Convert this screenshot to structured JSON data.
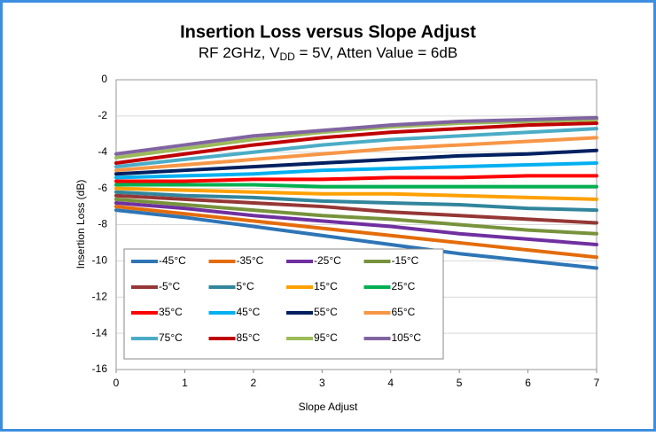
{
  "chart_data": {
    "type": "line",
    "title": "Insertion Loss versus Slope Adjust",
    "subtitle": [
      "RF 2GHz, V",
      "DD",
      " = 5V, Atten Value = 6dB"
    ],
    "x_label": "Slope Adjust",
    "y_label": "Insertion Loss (dB)",
    "x": [
      0,
      1,
      2,
      3,
      4,
      5,
      6,
      7
    ],
    "xlim": [
      0,
      7
    ],
    "xticks": [
      0,
      1,
      2,
      3,
      4,
      5,
      6,
      7
    ],
    "ylim": [
      -16,
      0
    ],
    "yticks": [
      -16,
      -14,
      -12,
      -10,
      -8,
      -6,
      -4,
      -2,
      0
    ],
    "grid": true,
    "legend": "lower-left",
    "series": [
      {
        "name": "-45°C",
        "color": "#2e75b6",
        "values": [
          -7.2,
          -7.6,
          -8.1,
          -8.6,
          -9.1,
          -9.6,
          -10.0,
          -10.4
        ]
      },
      {
        "name": "-35°C",
        "color": "#e46c0a",
        "values": [
          -7.0,
          -7.4,
          -7.8,
          -8.2,
          -8.6,
          -9.0,
          -9.4,
          -9.8
        ]
      },
      {
        "name": "-25°C",
        "color": "#7030a0",
        "values": [
          -6.8,
          -7.1,
          -7.5,
          -7.8,
          -8.1,
          -8.5,
          -8.8,
          -9.1
        ]
      },
      {
        "name": "-15°C",
        "color": "#77933c",
        "values": [
          -6.6,
          -6.9,
          -7.2,
          -7.5,
          -7.7,
          -8.0,
          -8.3,
          -8.5
        ]
      },
      {
        "name": "-5°C",
        "color": "#953735",
        "values": [
          -6.4,
          -6.6,
          -6.8,
          -7.0,
          -7.3,
          -7.5,
          -7.7,
          -7.9
        ]
      },
      {
        "name": "5°C",
        "color": "#31859c",
        "values": [
          -6.2,
          -6.4,
          -6.5,
          -6.7,
          -6.8,
          -6.9,
          -7.1,
          -7.2
        ]
      },
      {
        "name": "15°C",
        "color": "#ffa000",
        "values": [
          -6.0,
          -6.1,
          -6.2,
          -6.3,
          -6.3,
          -6.4,
          -6.5,
          -6.6
        ]
      },
      {
        "name": "25°C",
        "color": "#00b050",
        "values": [
          -5.8,
          -5.8,
          -5.8,
          -5.9,
          -5.9,
          -5.9,
          -5.9,
          -5.9
        ]
      },
      {
        "name": "35°C",
        "color": "#ff0000",
        "values": [
          -5.6,
          -5.6,
          -5.5,
          -5.5,
          -5.4,
          -5.4,
          -5.3,
          -5.3
        ]
      },
      {
        "name": "45°C",
        "color": "#00b0f0",
        "values": [
          -5.4,
          -5.3,
          -5.2,
          -5.0,
          -4.9,
          -4.8,
          -4.7,
          -4.6
        ]
      },
      {
        "name": "55°C",
        "color": "#002060",
        "values": [
          -5.2,
          -5.0,
          -4.8,
          -4.6,
          -4.4,
          -4.2,
          -4.1,
          -3.9
        ]
      },
      {
        "name": "65°C",
        "color": "#f79646",
        "values": [
          -5.0,
          -4.7,
          -4.4,
          -4.1,
          -3.8,
          -3.6,
          -3.4,
          -3.2
        ]
      },
      {
        "name": "75°C",
        "color": "#4bacc6",
        "values": [
          -4.8,
          -4.4,
          -4.0,
          -3.6,
          -3.3,
          -3.1,
          -2.9,
          -2.7
        ]
      },
      {
        "name": "85°C",
        "color": "#c00000",
        "values": [
          -4.6,
          -4.1,
          -3.6,
          -3.2,
          -2.9,
          -2.7,
          -2.5,
          -2.4
        ]
      },
      {
        "name": "95°C",
        "color": "#9bbb59",
        "values": [
          -4.3,
          -3.8,
          -3.3,
          -2.9,
          -2.6,
          -2.4,
          -2.3,
          -2.2
        ]
      },
      {
        "name": "105°C",
        "color": "#8064a2",
        "values": [
          -4.1,
          -3.6,
          -3.1,
          -2.8,
          -2.5,
          -2.3,
          -2.2,
          -2.1
        ]
      }
    ]
  }
}
